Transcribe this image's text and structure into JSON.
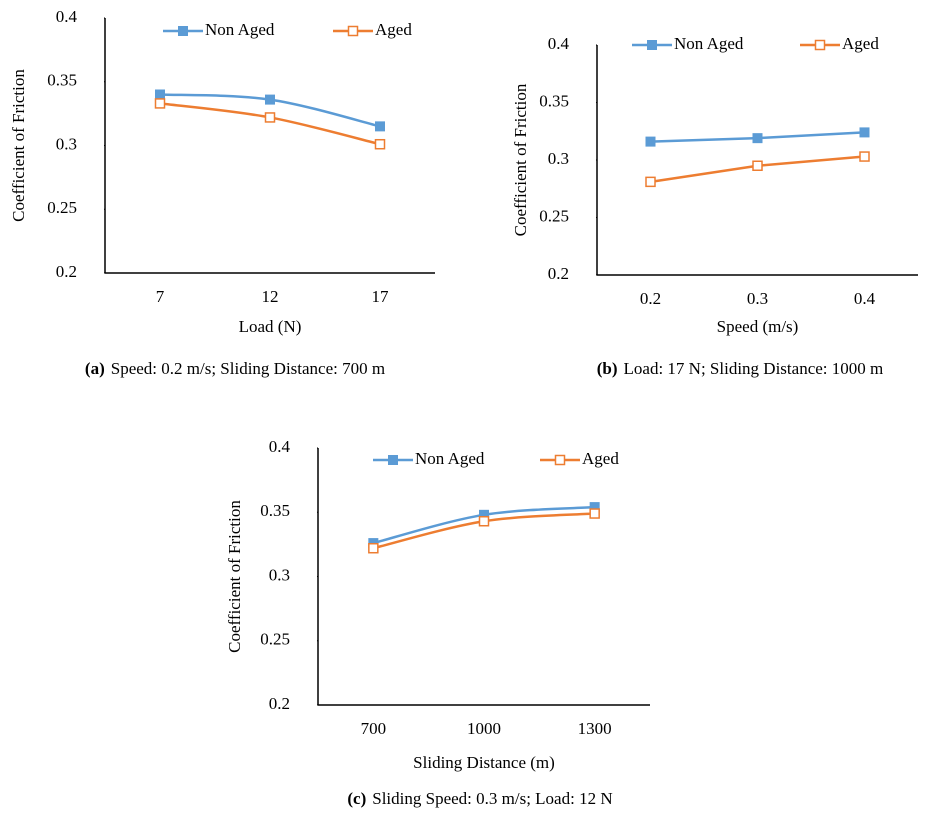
{
  "chart_data": [
    {
      "type": "line",
      "smooth": true,
      "caption": {
        "label": "(a)",
        "text": "Speed: 0.2 m/s; Sliding Distance: 700 m"
      },
      "x_label": "Load (N)",
      "y_label": "Coefficient of  Friction",
      "categories": [
        "7",
        "12",
        "17"
      ],
      "series": [
        {
          "name": "Non Aged",
          "color": "#5b9bd5",
          "values": [
            0.34,
            0.336,
            0.315
          ]
        },
        {
          "name": "Aged",
          "color": "#ed7d31",
          "values": [
            0.333,
            0.322,
            0.301
          ]
        }
      ],
      "ylim": [
        0.2,
        0.4
      ],
      "yticks": [
        0.2,
        0.25,
        0.3,
        0.35,
        0.4
      ],
      "legend": "top"
    },
    {
      "type": "line",
      "smooth": false,
      "caption": {
        "label": "(b)",
        "text": "Load: 17 N; Sliding Distance: 1000 m"
      },
      "x_label": "Speed (m/s)",
      "y_label": "Coefficient of  Friction",
      "categories": [
        "0.2",
        "0.3",
        "0.4"
      ],
      "series": [
        {
          "name": "Non Aged",
          "color": "#5b9bd5",
          "values": [
            0.316,
            0.319,
            0.324
          ]
        },
        {
          "name": "Aged",
          "color": "#ed7d31",
          "values": [
            0.281,
            0.295,
            0.303
          ]
        }
      ],
      "ylim": [
        0.2,
        0.4
      ],
      "yticks": [
        0.2,
        0.25,
        0.3,
        0.35,
        0.4
      ],
      "legend": "top"
    },
    {
      "type": "line",
      "smooth": true,
      "caption": {
        "label": "(c)",
        "text": "Sliding Speed: 0.3 m/s; Load: 12 N"
      },
      "x_label": "Sliding Distance (m)",
      "y_label": "Coefficient of  Friction",
      "categories": [
        "700",
        "1000",
        "1300"
      ],
      "series": [
        {
          "name": "Non Aged",
          "color": "#5b9bd5",
          "values": [
            0.326,
            0.348,
            0.354
          ]
        },
        {
          "name": "Aged",
          "color": "#ed7d31",
          "values": [
            0.322,
            0.343,
            0.349
          ]
        }
      ],
      "ylim": [
        0.2,
        0.4
      ],
      "yticks": [
        0.2,
        0.25,
        0.3,
        0.35,
        0.4
      ],
      "legend": "top"
    }
  ]
}
